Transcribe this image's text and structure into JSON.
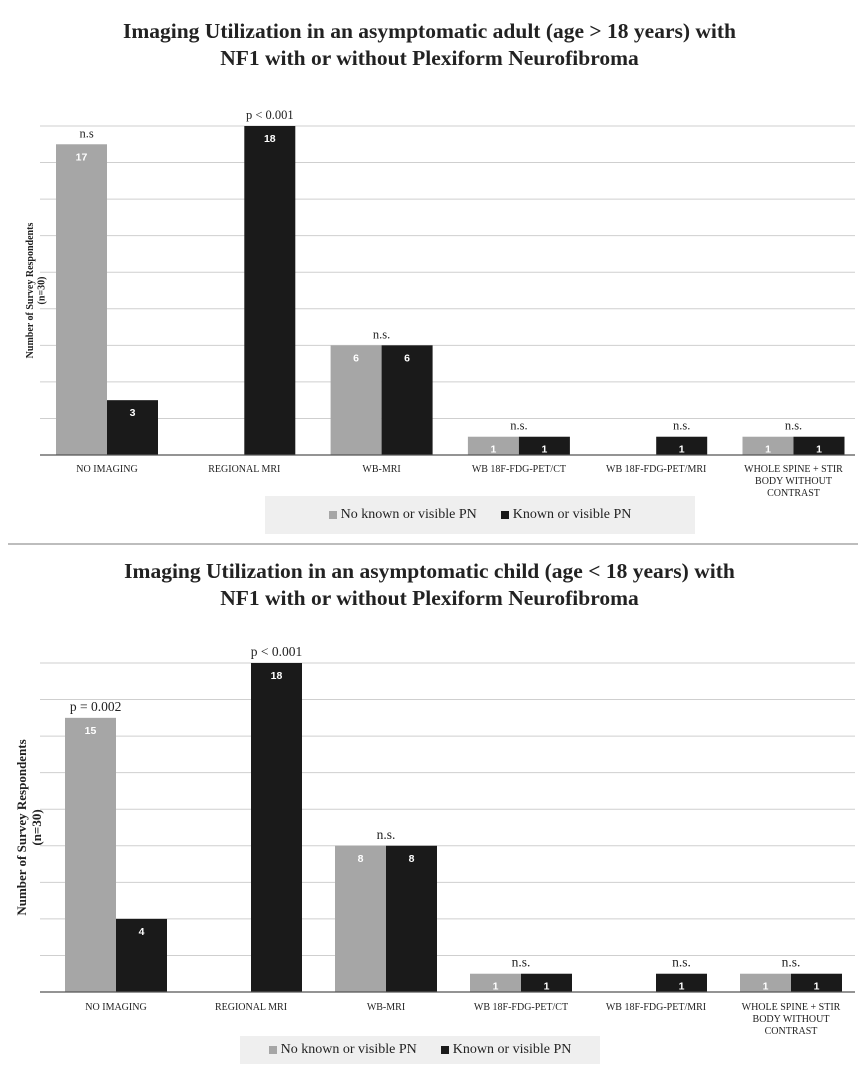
{
  "chart_data": [
    {
      "type": "bar",
      "title": [
        "Imaging Utilization in an asymptomatic adult (age > 18 years) with",
        "NF1 with or without Plexiform Neurofibroma"
      ],
      "ylabel": [
        "Number of Survey Respondents",
        "(n=30)"
      ],
      "xlabel": "",
      "ylim": [
        0,
        18
      ],
      "grid": true,
      "legend_position": "bottom",
      "categories": [
        [
          "NO IMAGING"
        ],
        [
          "REGIONAL MRI"
        ],
        [
          "WB-MRI"
        ],
        [
          "WB  18F-FDG-PET/CT"
        ],
        [
          "WB  18F-FDG-PET/MRI"
        ],
        [
          "WHOLE SPINE + STIR",
          "BODY WITHOUT",
          "CONTRAST"
        ]
      ],
      "series": [
        {
          "name": "No known or visible PN",
          "color": "#a6a6a6",
          "values": [
            17,
            0,
            6,
            1,
            0,
            1
          ]
        },
        {
          "name": "Known or visible PN",
          "color": "#1a1a1a",
          "values": [
            3,
            18,
            6,
            1,
            1,
            1
          ]
        }
      ],
      "annotations": [
        "n.s",
        "p < 0.001",
        "n.s.",
        "n.s.",
        "n.s.",
        "n.s."
      ]
    },
    {
      "type": "bar",
      "title": [
        "Imaging Utilization in an asymptomatic child  (age < 18 years)  with",
        "NF1 with or without Plexiform Neurofibroma"
      ],
      "ylabel": [
        "Number of Survey Respondents",
        "(n=30)"
      ],
      "xlabel": "",
      "ylim": [
        0,
        18
      ],
      "grid": true,
      "legend_position": "bottom",
      "categories": [
        [
          "NO IMAGING"
        ],
        [
          "REGIONAL MRI"
        ],
        [
          "WB-MRI"
        ],
        [
          "WB  18F-FDG-PET/CT"
        ],
        [
          "WB  18F-FDG-PET/MRI"
        ],
        [
          "WHOLE SPINE + STIR",
          "BODY WITHOUT",
          "CONTRAST"
        ]
      ],
      "series": [
        {
          "name": "No known or visible PN",
          "color": "#a6a6a6",
          "values": [
            15,
            0,
            8,
            1,
            0,
            1
          ]
        },
        {
          "name": "Known or visible PN",
          "color": "#1a1a1a",
          "values": [
            4,
            18,
            8,
            1,
            1,
            1
          ]
        }
      ],
      "annotations": [
        "p = 0.002",
        "p < 0.001",
        "n.s.",
        "n.s.",
        "n.s.",
        "n.s."
      ]
    }
  ]
}
